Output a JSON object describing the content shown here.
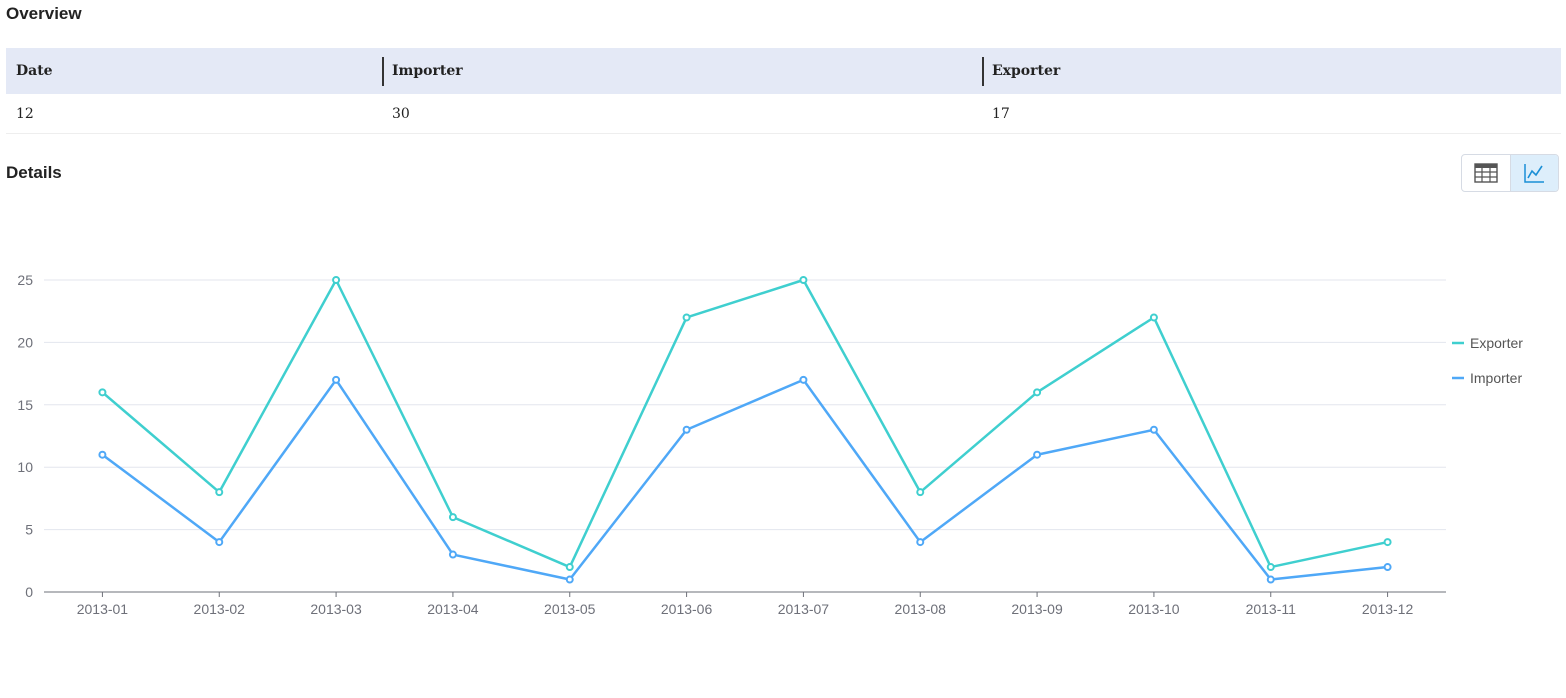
{
  "overview": {
    "title": "Overview",
    "headers": [
      "Date",
      "Importer",
      "Exporter"
    ],
    "values": [
      "12",
      "30",
      "17"
    ]
  },
  "details": {
    "title": "Details",
    "view_toggle": {
      "table_icon": "table-icon",
      "chart_icon": "line-chart-icon",
      "active": "chart"
    }
  },
  "chart_data": {
    "type": "line",
    "categories": [
      "2013-01",
      "2013-02",
      "2013-03",
      "2013-04",
      "2013-05",
      "2013-06",
      "2013-07",
      "2013-08",
      "2013-09",
      "2013-10",
      "2013-11",
      "2013-12"
    ],
    "series": [
      {
        "name": "Exporter",
        "color": "#3fcfcf",
        "values": [
          16,
          8,
          25,
          6,
          2,
          22,
          25,
          8,
          16,
          22,
          2,
          4
        ]
      },
      {
        "name": "Importer",
        "color": "#4fa8f7",
        "values": [
          11,
          4,
          17,
          3,
          1,
          13,
          17,
          4,
          11,
          13,
          1,
          2
        ]
      }
    ],
    "yticks": [
      0,
      5,
      10,
      15,
      20,
      25
    ],
    "ylim": [
      0,
      25
    ],
    "grid": true,
    "legend": "right",
    "axis_color": "#6e7079",
    "grid_color": "#e3e6ee"
  }
}
